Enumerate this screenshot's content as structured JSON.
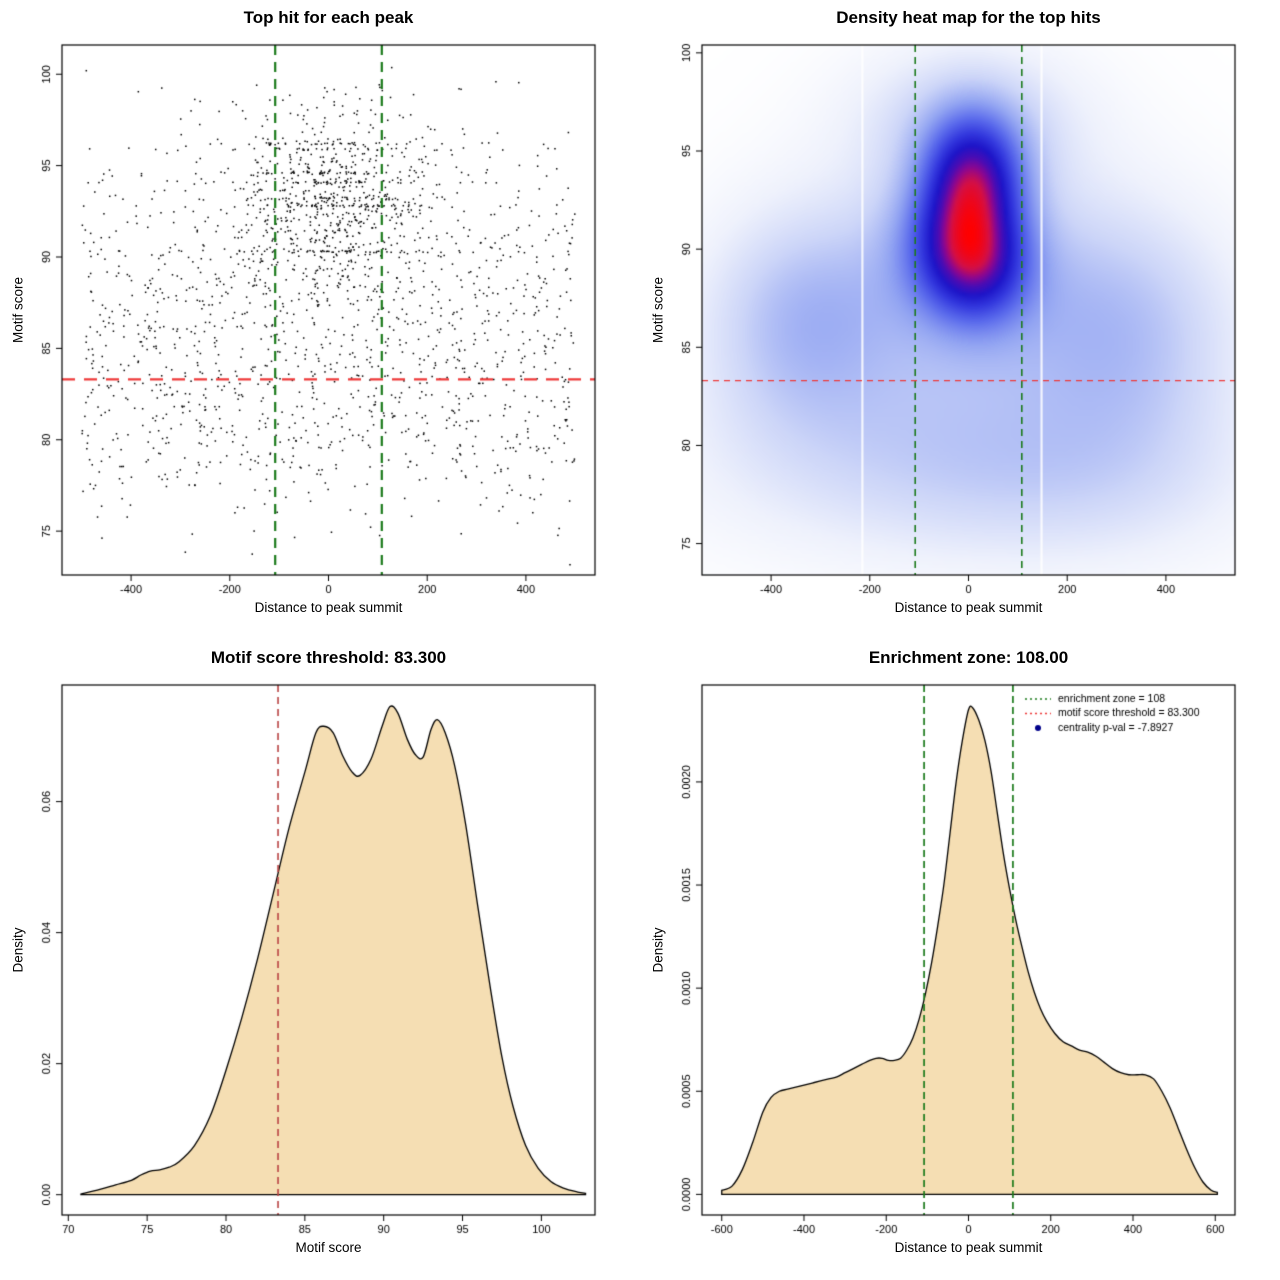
{
  "page": {
    "background": "#ffffff"
  },
  "colors": {
    "green_line": "#1b7a1b",
    "red_line": "#ee3a3a",
    "dark_red_line": "#b94343",
    "density_fill": "#f5deb3",
    "curve_stroke": "#000000",
    "point_color": "#000000",
    "legend_point": "#00008b"
  },
  "chart_data": [
    {
      "type": "scatter",
      "title": "Top hit for each peak",
      "xlabel": "Distance to peak summit",
      "ylabel": "Motif score",
      "xlim": [
        -540,
        540
      ],
      "ylim": [
        72.6,
        101.6
      ],
      "xtick_vals": [
        -400,
        -200,
        0,
        200,
        400
      ],
      "xtick_labels": [
        "-400",
        "-200",
        "0",
        "200",
        "400"
      ],
      "ytick_vals": [
        75,
        80,
        85,
        90,
        95,
        100
      ],
      "ytick_labels": [
        "75",
        "80",
        "85",
        "90",
        "95",
        "100"
      ],
      "enrichment_zone": [
        -108,
        108
      ],
      "score_threshold": 83.3,
      "points_seed": 20240613,
      "snap_scores": [
        90.3,
        92.8,
        93.2,
        94.1,
        94.6,
        95.9,
        96.2
      ],
      "x_clip": [
        -505,
        505
      ],
      "y_clip": [
        73.1,
        100.6
      ],
      "point_components": [
        {
          "n": 720,
          "x": {
            "dist": "normal",
            "mean": 15,
            "sd": 105
          },
          "y": {
            "dist": "normal",
            "mean": 92.4,
            "sd": 2.4
          },
          "snap_prob": 0.32
        },
        {
          "n": 880,
          "x": {
            "dist": "uniform",
            "min": -500,
            "max": 500
          },
          "y": {
            "dist": "normal",
            "mean": 87.6,
            "sd": 4.3
          },
          "snap_prob": 0.06
        },
        {
          "n": 430,
          "x": {
            "dist": "uniform",
            "min": -500,
            "max": 500
          },
          "y": {
            "dist": "normal",
            "mean": 80.6,
            "sd": 3.1
          },
          "snap_prob": 0
        },
        {
          "n": 70,
          "x": {
            "dist": "normal",
            "mean": 0,
            "sd": 150
          },
          "y": {
            "dist": "normal",
            "mean": 97.5,
            "sd": 1.5
          },
          "snap_prob": 0
        }
      ]
    },
    {
      "type": "heatmap",
      "title": "Density heat map for the top hits",
      "xlabel": "Distance to peak summit",
      "ylabel": "Motif score",
      "xlim": [
        -540,
        540
      ],
      "ylim": [
        73.4,
        100.4
      ],
      "xtick_vals": [
        -400,
        -200,
        0,
        200,
        400
      ],
      "xtick_labels": [
        "-400",
        "-200",
        "0",
        "200",
        "400"
      ],
      "ytick_vals": [
        75,
        80,
        85,
        90,
        95,
        100
      ],
      "ytick_labels": [
        "75",
        "80",
        "85",
        "90",
        "95",
        "100"
      ],
      "enrichment_zone": [
        -108,
        108
      ],
      "score_threshold": 83.3,
      "gamma": 0.78,
      "white_gaps": [
        -215,
        148
      ],
      "density_components": [
        {
          "x": 10,
          "y": 93.8,
          "sx": 68,
          "sy": 2.2,
          "w": 1.0
        },
        {
          "x": -15,
          "y": 90.4,
          "sx": 80,
          "sy": 2.3,
          "w": 0.8
        },
        {
          "x": 25,
          "y": 89.0,
          "sx": 70,
          "sy": 2.0,
          "w": 0.55
        },
        {
          "x": 0,
          "y": 88.0,
          "sx": 230,
          "sy": 4.2,
          "w": 0.33
        },
        {
          "x": 0,
          "y": 96.5,
          "sx": 150,
          "sy": 2.5,
          "w": 0.25
        },
        {
          "x": -340,
          "y": 86.2,
          "sx": 130,
          "sy": 3.6,
          "w": 0.3
        },
        {
          "x": 330,
          "y": 85.2,
          "sx": 150,
          "sy": 4.2,
          "w": 0.27
        },
        {
          "x": -120,
          "y": 79.8,
          "sx": 300,
          "sy": 3.4,
          "w": 0.2
        },
        {
          "x": 200,
          "y": 78.2,
          "sx": 260,
          "sy": 3.0,
          "w": 0.15
        }
      ],
      "color_stops": [
        [
          0,
          "#ffffff"
        ],
        [
          0.1,
          "#eef1fc"
        ],
        [
          0.22,
          "#ccd5f8"
        ],
        [
          0.36,
          "#93a5f2"
        ],
        [
          0.5,
          "#5a6aec"
        ],
        [
          0.62,
          "#3338de"
        ],
        [
          0.72,
          "#1d14c8"
        ],
        [
          0.8,
          "#4a0cb4"
        ],
        [
          0.86,
          "#8c0690"
        ],
        [
          0.92,
          "#d40f45"
        ],
        [
          1,
          "#ff0000"
        ]
      ]
    },
    {
      "type": "density",
      "title": "Motif score threshold: 83.300",
      "xlabel": "Motif score",
      "ylabel": "Density",
      "xlim": [
        69.6,
        103.4
      ],
      "ylim": [
        -0.0031,
        0.0778
      ],
      "xtick_vals": [
        70,
        75,
        80,
        85,
        90,
        95,
        100
      ],
      "xtick_labels": [
        "70",
        "75",
        "80",
        "85",
        "90",
        "95",
        "100"
      ],
      "ytick_vals": [
        0,
        0.02,
        0.04,
        0.06
      ],
      "ytick_labels": [
        "0.00",
        "0.02",
        "0.04",
        "0.06"
      ],
      "vline": {
        "x": 83.3,
        "color_key": "dark_red_line"
      },
      "curve": [
        [
          70.8,
          0.0001
        ],
        [
          72,
          0.0008
        ],
        [
          73,
          0.0015
        ],
        [
          74,
          0.0022
        ],
        [
          74.6,
          0.003
        ],
        [
          75.2,
          0.0036
        ],
        [
          75.8,
          0.0038
        ],
        [
          76.4,
          0.0042
        ],
        [
          77,
          0.005
        ],
        [
          78,
          0.0075
        ],
        [
          79,
          0.012
        ],
        [
          80,
          0.019
        ],
        [
          81,
          0.027
        ],
        [
          82,
          0.036
        ],
        [
          83,
          0.046
        ],
        [
          84,
          0.056
        ],
        [
          85,
          0.0645
        ],
        [
          85.7,
          0.0705
        ],
        [
          86.2,
          0.0715
        ],
        [
          86.8,
          0.0705
        ],
        [
          87.4,
          0.067
        ],
        [
          88,
          0.0645
        ],
        [
          88.5,
          0.064
        ],
        [
          89.2,
          0.0665
        ],
        [
          89.9,
          0.0715
        ],
        [
          90.4,
          0.0745
        ],
        [
          90.9,
          0.0735
        ],
        [
          91.5,
          0.0695
        ],
        [
          92,
          0.0672
        ],
        [
          92.5,
          0.0668
        ],
        [
          93,
          0.071
        ],
        [
          93.4,
          0.0725
        ],
        [
          93.9,
          0.0705
        ],
        [
          94.5,
          0.0655
        ],
        [
          95.2,
          0.0565
        ],
        [
          96,
          0.0435
        ],
        [
          96.8,
          0.031
        ],
        [
          97.5,
          0.021
        ],
        [
          98.2,
          0.0135
        ],
        [
          99,
          0.0075
        ],
        [
          99.8,
          0.004
        ],
        [
          100.6,
          0.002
        ],
        [
          101.4,
          0.001
        ],
        [
          102.3,
          0.0004
        ],
        [
          102.8,
          0.0002
        ]
      ]
    },
    {
      "type": "density",
      "title": "Enrichment zone: 108.00",
      "xlabel": "Distance to peak summit",
      "ylabel": "Density",
      "xlim": [
        -648,
        648
      ],
      "ylim": [
        -0.0001,
        0.00247
      ],
      "xtick_vals": [
        -600,
        -400,
        -200,
        0,
        200,
        400,
        600
      ],
      "xtick_labels": [
        "-600",
        "-400",
        "-200",
        "0",
        "200",
        "400",
        "600"
      ],
      "ytick_vals": [
        0,
        0.0005,
        0.001,
        0.0015,
        0.002
      ],
      "ytick_labels": [
        "0.0000",
        "0.0005",
        "0.0010",
        "0.0015",
        "0.0020"
      ],
      "vlines": [
        -108,
        108
      ],
      "legend": [
        {
          "sample": "dotted-line",
          "color_key": "green_line",
          "label": "enrichment zone = 108"
        },
        {
          "sample": "dotted-line",
          "color_key": "red_line",
          "label": "motif score threshold = 83.300"
        },
        {
          "sample": "point",
          "color_key": "legend_point",
          "label": "centrality p-val = -7.8927"
        }
      ],
      "curve": [
        [
          -600,
          2e-05
        ],
        [
          -575,
          4e-05
        ],
        [
          -550,
          0.00012
        ],
        [
          -525,
          0.00025
        ],
        [
          -500,
          0.0004
        ],
        [
          -480,
          0.00047
        ],
        [
          -460,
          0.0005
        ],
        [
          -440,
          0.00051
        ],
        [
          -420,
          0.00052
        ],
        [
          -400,
          0.00053
        ],
        [
          -380,
          0.00054
        ],
        [
          -360,
          0.00055
        ],
        [
          -340,
          0.00056
        ],
        [
          -320,
          0.00057
        ],
        [
          -300,
          0.00059
        ],
        [
          -280,
          0.00061
        ],
        [
          -260,
          0.00063
        ],
        [
          -240,
          0.00065
        ],
        [
          -225,
          0.00066
        ],
        [
          -210,
          0.00066
        ],
        [
          -195,
          0.00065
        ],
        [
          -180,
          0.00065
        ],
        [
          -165,
          0.00066
        ],
        [
          -150,
          0.0007
        ],
        [
          -135,
          0.00076
        ],
        [
          -120,
          0.00085
        ],
        [
          -105,
          0.00097
        ],
        [
          -90,
          0.00112
        ],
        [
          -75,
          0.0013
        ],
        [
          -60,
          0.0015
        ],
        [
          -45,
          0.00175
        ],
        [
          -30,
          0.002
        ],
        [
          -15,
          0.0022
        ],
        [
          0,
          0.00235
        ],
        [
          10,
          0.00236
        ],
        [
          25,
          0.0023
        ],
        [
          40,
          0.0022
        ],
        [
          55,
          0.00205
        ],
        [
          70,
          0.00185
        ],
        [
          85,
          0.00165
        ],
        [
          100,
          0.00148
        ],
        [
          115,
          0.00133
        ],
        [
          130,
          0.0012
        ],
        [
          145,
          0.00108
        ],
        [
          160,
          0.00098
        ],
        [
          175,
          0.0009
        ],
        [
          190,
          0.00084
        ],
        [
          210,
          0.00078
        ],
        [
          230,
          0.00074
        ],
        [
          250,
          0.00072
        ],
        [
          270,
          0.0007
        ],
        [
          290,
          0.00069
        ],
        [
          310,
          0.00067
        ],
        [
          330,
          0.00064
        ],
        [
          350,
          0.00061
        ],
        [
          370,
          0.00059
        ],
        [
          390,
          0.00058
        ],
        [
          410,
          0.00058
        ],
        [
          430,
          0.00058
        ],
        [
          450,
          0.00056
        ],
        [
          470,
          0.0005
        ],
        [
          490,
          0.00042
        ],
        [
          510,
          0.00032
        ],
        [
          530,
          0.00022
        ],
        [
          550,
          0.00013
        ],
        [
          570,
          6e-05
        ],
        [
          590,
          2e-05
        ],
        [
          605,
          1e-05
        ]
      ]
    }
  ]
}
